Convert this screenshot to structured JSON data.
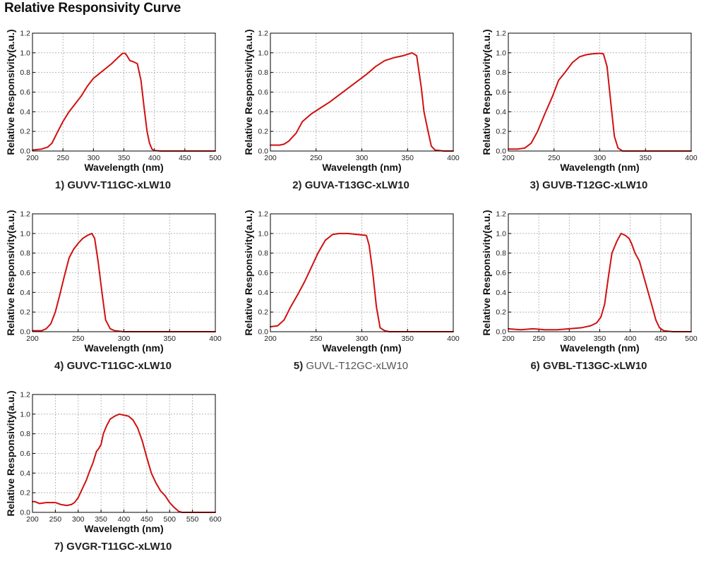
{
  "page_title": "Relative Responsivity Curve",
  "curve_color": "#d01010",
  "chart_data": [
    {
      "type": "line",
      "caption_number": "1)",
      "caption_name": "GUVV-T11GC-xLW10",
      "caption_style": "bold",
      "xlabel": "Wavelength (nm)",
      "ylabel": "Relative Responsivity(a.u.)",
      "xlim": [
        200,
        500
      ],
      "ylim": [
        0,
        1.2
      ],
      "xticks": [
        200,
        250,
        300,
        350,
        400,
        450,
        500
      ],
      "yticks": [
        0,
        0.2,
        0.4,
        0.6,
        0.8,
        1.0,
        1.2
      ],
      "grid": true,
      "x": [
        200,
        215,
        225,
        232,
        240,
        250,
        260,
        270,
        280,
        290,
        300,
        310,
        320,
        330,
        340,
        348,
        352,
        355,
        360,
        365,
        372,
        378,
        383,
        388,
        392,
        396,
        400,
        410,
        450,
        500
      ],
      "y": [
        0.01,
        0.02,
        0.04,
        0.08,
        0.18,
        0.3,
        0.4,
        0.48,
        0.56,
        0.66,
        0.74,
        0.79,
        0.84,
        0.89,
        0.95,
        0.995,
        0.995,
        0.97,
        0.92,
        0.91,
        0.89,
        0.72,
        0.45,
        0.2,
        0.08,
        0.02,
        0.005,
        0,
        0,
        0
      ]
    },
    {
      "type": "line",
      "caption_number": "2)",
      "caption_name": "GUVA-T13GC-xLW10",
      "caption_style": "bold",
      "xlabel": "Wavelength (nm)",
      "ylabel": "Relative Responsivity(a.u.)",
      "xlim": [
        200,
        400
      ],
      "ylim": [
        0,
        1.2
      ],
      "xticks": [
        200,
        250,
        300,
        350,
        400
      ],
      "yticks": [
        0,
        0.2,
        0.4,
        0.6,
        0.8,
        1.0,
        1.2
      ],
      "grid": true,
      "x": [
        200,
        210,
        215,
        220,
        228,
        235,
        245,
        255,
        265,
        275,
        285,
        295,
        305,
        315,
        325,
        335,
        345,
        352,
        355,
        360,
        365,
        368,
        372,
        376,
        380,
        390,
        400
      ],
      "y": [
        0.06,
        0.06,
        0.07,
        0.1,
        0.18,
        0.3,
        0.38,
        0.44,
        0.5,
        0.57,
        0.64,
        0.71,
        0.78,
        0.86,
        0.92,
        0.95,
        0.97,
        0.99,
        1.0,
        0.97,
        0.65,
        0.4,
        0.22,
        0.05,
        0.01,
        0,
        0
      ]
    },
    {
      "type": "line",
      "caption_number": "3)",
      "caption_name": "GUVB-T12GC-xLW10",
      "caption_style": "bold",
      "xlabel": "Wavelength (nm)",
      "ylabel": "Relative Responsivity(a.u.)",
      "xlim": [
        200,
        400
      ],
      "ylim": [
        0,
        1.2
      ],
      "xticks": [
        200,
        250,
        300,
        350,
        400
      ],
      "yticks": [
        0,
        0.2,
        0.4,
        0.6,
        0.8,
        1.0,
        1.2
      ],
      "grid": true,
      "x": [
        200,
        210,
        218,
        225,
        232,
        240,
        248,
        255,
        262,
        270,
        278,
        285,
        292,
        300,
        304,
        308,
        312,
        316,
        320,
        325,
        335,
        400
      ],
      "y": [
        0.02,
        0.02,
        0.03,
        0.08,
        0.2,
        0.38,
        0.55,
        0.72,
        0.8,
        0.9,
        0.96,
        0.98,
        0.99,
        0.995,
        0.99,
        0.86,
        0.5,
        0.15,
        0.03,
        0,
        0,
        0
      ]
    },
    {
      "type": "line",
      "caption_number": "4)",
      "caption_name": "GUVC-T11GC-xLW10",
      "caption_style": "bold",
      "xlabel": "Wavelength (nm)",
      "ylabel": "Relative Responsivity(a.u.)",
      "xlim": [
        200,
        400
      ],
      "ylim": [
        0,
        1.2
      ],
      "xticks": [
        200,
        250,
        300,
        350,
        400
      ],
      "yticks": [
        0,
        0.2,
        0.4,
        0.6,
        0.8,
        1.0,
        1.2
      ],
      "grid": true,
      "x": [
        200,
        210,
        215,
        220,
        225,
        230,
        235,
        240,
        245,
        250,
        255,
        260,
        265,
        268,
        272,
        276,
        280,
        285,
        290,
        300,
        400
      ],
      "y": [
        0.01,
        0.01,
        0.03,
        0.08,
        0.2,
        0.38,
        0.57,
        0.75,
        0.84,
        0.9,
        0.95,
        0.98,
        1.0,
        0.95,
        0.7,
        0.4,
        0.12,
        0.03,
        0.01,
        0,
        0
      ]
    },
    {
      "type": "line",
      "caption_number": "5)",
      "caption_name": "GUVL-T12GC-xLW10",
      "caption_style": "light",
      "xlabel": "Wavelength (nm)",
      "ylabel": "Relative Responsivity(a.u.)",
      "xlim": [
        200,
        400
      ],
      "ylim": [
        0,
        1.2
      ],
      "xticks": [
        200,
        250,
        300,
        350,
        400
      ],
      "yticks": [
        0,
        0.2,
        0.4,
        0.6,
        0.8,
        1.0,
        1.2
      ],
      "grid": true,
      "x": [
        200,
        208,
        215,
        222,
        230,
        238,
        245,
        252,
        260,
        268,
        275,
        285,
        295,
        305,
        308,
        312,
        316,
        320,
        325,
        330,
        400
      ],
      "y": [
        0.05,
        0.06,
        0.12,
        0.25,
        0.38,
        0.52,
        0.66,
        0.8,
        0.93,
        0.99,
        1.0,
        1.0,
        0.99,
        0.98,
        0.88,
        0.6,
        0.25,
        0.04,
        0.01,
        0,
        0
      ]
    },
    {
      "type": "line",
      "caption_number": "6)",
      "caption_name": "GVBL-T13GC-xLW10",
      "caption_style": "bold",
      "xlabel": "Wavelength (nm)",
      "ylabel": "Relative Responsivity(a.u.)",
      "xlim": [
        200,
        500
      ],
      "ylim": [
        0,
        1.2
      ],
      "xticks": [
        200,
        250,
        300,
        350,
        400,
        450,
        500
      ],
      "yticks": [
        0,
        0.2,
        0.4,
        0.6,
        0.8,
        1.0,
        1.2
      ],
      "grid": true,
      "x": [
        200,
        220,
        240,
        260,
        280,
        300,
        320,
        335,
        345,
        352,
        358,
        364,
        370,
        378,
        385,
        392,
        398,
        402,
        408,
        415,
        425,
        435,
        442,
        448,
        455,
        470,
        500
      ],
      "y": [
        0.03,
        0.02,
        0.03,
        0.02,
        0.02,
        0.03,
        0.04,
        0.06,
        0.09,
        0.15,
        0.28,
        0.55,
        0.8,
        0.92,
        1.0,
        0.98,
        0.95,
        0.9,
        0.8,
        0.72,
        0.5,
        0.28,
        0.12,
        0.04,
        0.01,
        0,
        0
      ]
    },
    {
      "type": "line",
      "caption_number": "7)",
      "caption_name": "GVGR-T11GC-xLW10",
      "caption_style": "bold",
      "xlabel": "Wavelength (nm)",
      "ylabel": "Relative Responsivity(a.u.)",
      "xlim": [
        200,
        600
      ],
      "ylim": [
        0,
        1.2
      ],
      "xticks": [
        200,
        250,
        300,
        350,
        400,
        450,
        500,
        550,
        600
      ],
      "yticks": [
        0,
        0.2,
        0.4,
        0.6,
        0.8,
        1.0,
        1.2
      ],
      "grid": true,
      "x": [
        200,
        205,
        215,
        230,
        250,
        262,
        275,
        285,
        292,
        300,
        310,
        318,
        325,
        332,
        340,
        345,
        350,
        355,
        362,
        370,
        380,
        390,
        400,
        410,
        420,
        430,
        440,
        450,
        460,
        470,
        480,
        490,
        500,
        510,
        520,
        527,
        532,
        540,
        560,
        600
      ],
      "y": [
        0.11,
        0.11,
        0.09,
        0.1,
        0.1,
        0.08,
        0.07,
        0.08,
        0.1,
        0.15,
        0.25,
        0.33,
        0.42,
        0.5,
        0.62,
        0.65,
        0.69,
        0.8,
        0.88,
        0.95,
        0.98,
        1.0,
        0.99,
        0.98,
        0.94,
        0.86,
        0.73,
        0.56,
        0.4,
        0.3,
        0.22,
        0.17,
        0.1,
        0.05,
        0.01,
        0,
        0,
        0,
        0,
        0
      ]
    }
  ]
}
